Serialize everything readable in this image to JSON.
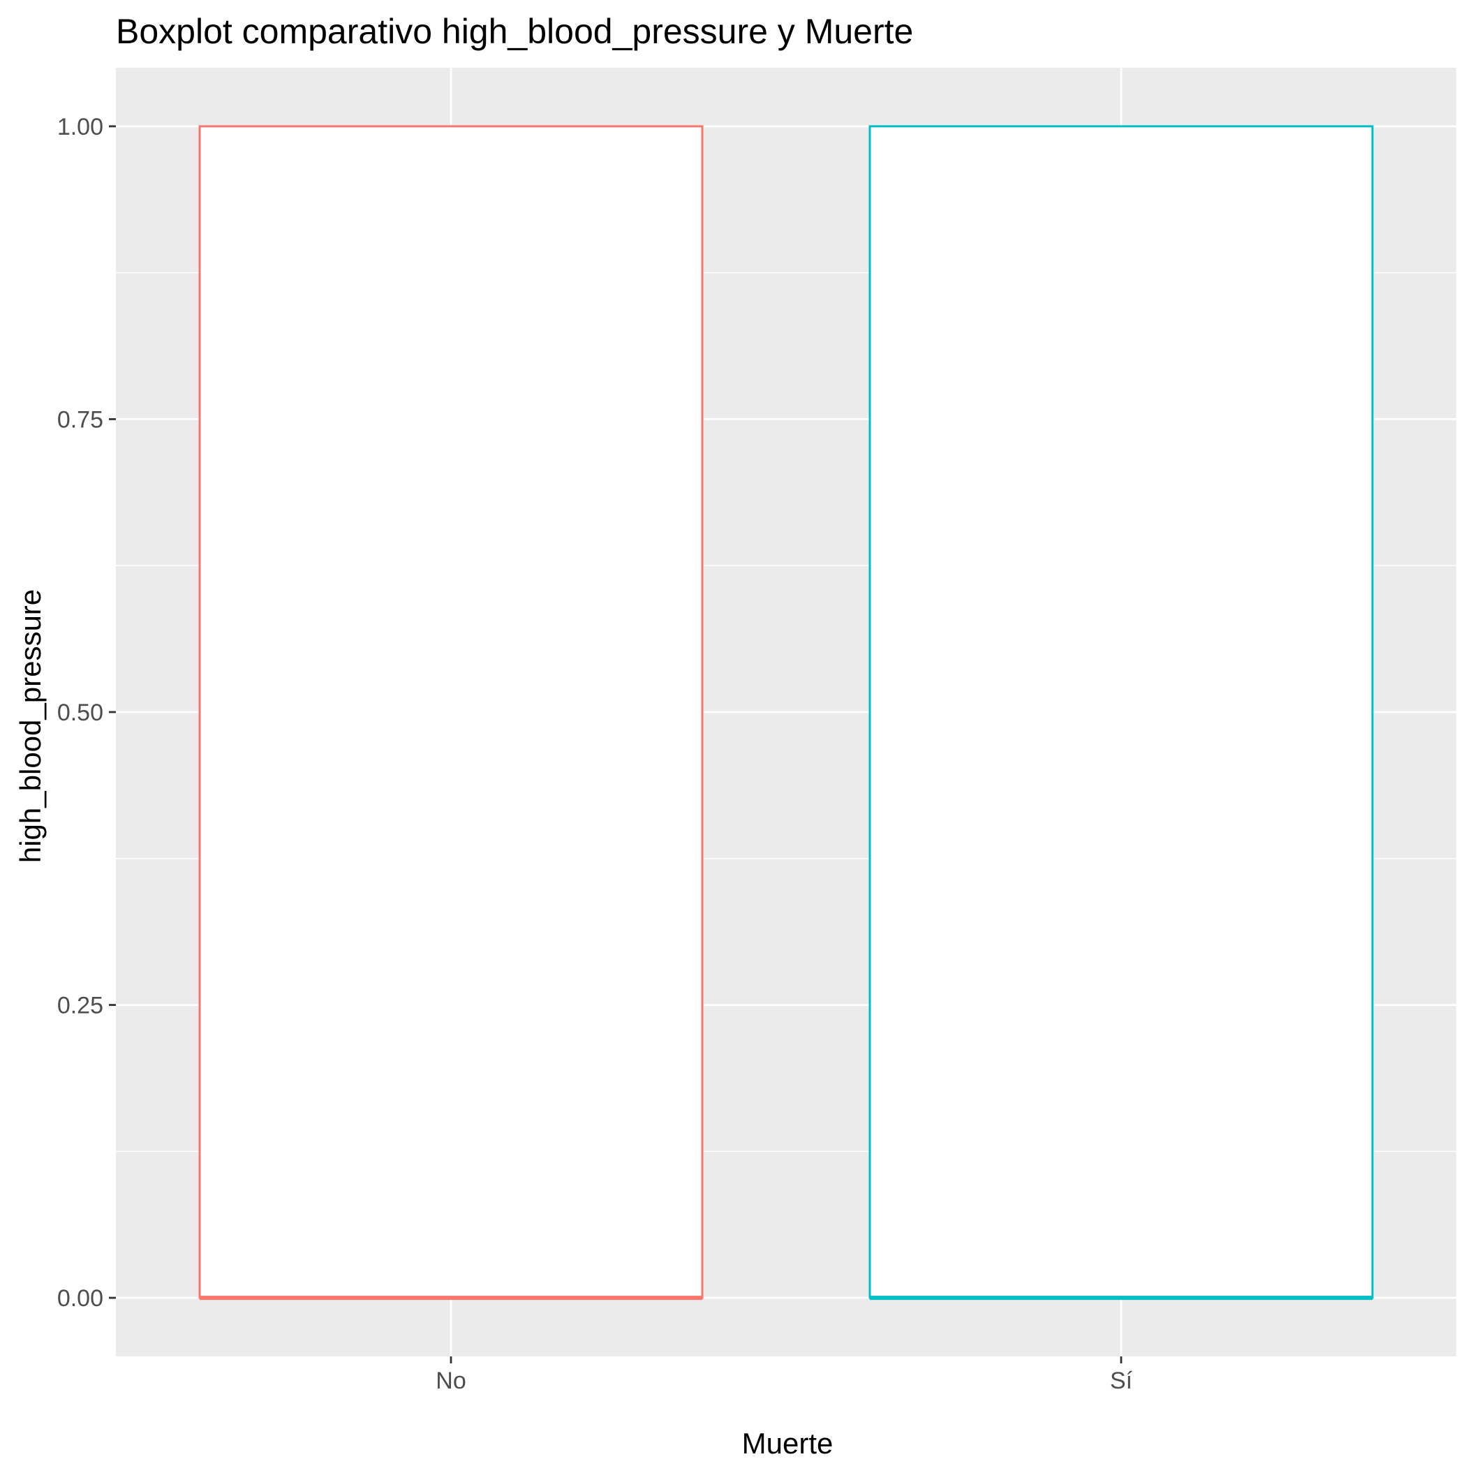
{
  "chart_data": {
    "type": "boxplot",
    "title": "Boxplot comparativo high_blood_pressure y Muerte",
    "xlabel": "Muerte",
    "ylabel": "high_blood_pressure",
    "categories": [
      "No",
      "Sí"
    ],
    "ylim": [
      -0.05,
      1.05
    ],
    "y_ticks": [
      0.0,
      0.25,
      0.5,
      0.75,
      1.0
    ],
    "y_tick_labels": [
      "0.00",
      "0.25",
      "0.50",
      "0.75",
      "1.00"
    ],
    "boxes": [
      {
        "category": "No",
        "min": 0,
        "q1": 0,
        "median": 0,
        "q3": 1,
        "max": 1,
        "color": "#F8766D"
      },
      {
        "category": "Sí",
        "min": 0,
        "q1": 0,
        "median": 0,
        "q3": 1,
        "max": 1,
        "color": "#00BFC4"
      }
    ],
    "grid": true,
    "panel_background": "#EBEBEB",
    "legend": "none"
  }
}
